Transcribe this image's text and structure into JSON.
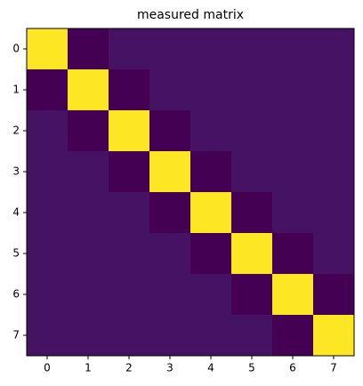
{
  "chart_data": {
    "type": "heatmap",
    "title": "measured matrix",
    "colormap": "viridis",
    "xlim": [
      -0.5,
      7.5
    ],
    "ylim": [
      7.5,
      -0.5
    ],
    "xticks": [
      0,
      1,
      2,
      3,
      4,
      5,
      6,
      7
    ],
    "yticks": [
      0,
      1,
      2,
      3,
      4,
      5,
      6,
      7
    ],
    "z": [
      [
        1,
        -0.05,
        0,
        0,
        0,
        0,
        0,
        0
      ],
      [
        -0.05,
        1,
        -0.05,
        0,
        0,
        0,
        0,
        0
      ],
      [
        0,
        -0.05,
        1,
        -0.05,
        0,
        0,
        0,
        0
      ],
      [
        0,
        0,
        -0.05,
        1,
        -0.05,
        0,
        0,
        0
      ],
      [
        0,
        0,
        0,
        -0.05,
        1,
        -0.05,
        0,
        0
      ],
      [
        0,
        0,
        0,
        0,
        -0.05,
        1,
        -0.05,
        0
      ],
      [
        0,
        0,
        0,
        0,
        0,
        -0.05,
        1,
        -0.05
      ],
      [
        0,
        0,
        0,
        0,
        0,
        0,
        -0.05,
        1
      ]
    ]
  }
}
